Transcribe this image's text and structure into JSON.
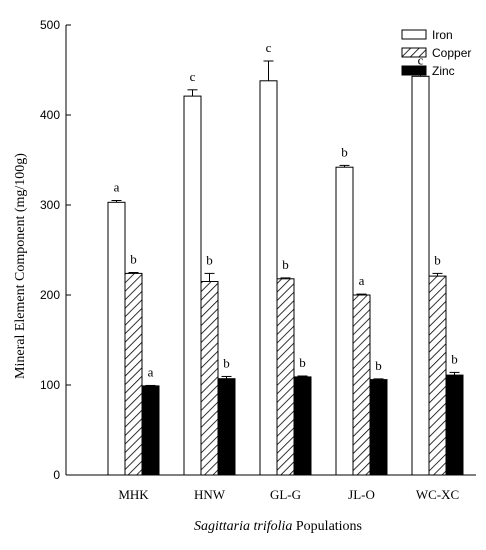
{
  "chart_data": {
    "type": "bar",
    "categories": [
      "MHK",
      "HNW",
      "GL-G",
      "JL-O",
      "WC-XC"
    ],
    "series": [
      {
        "name": "Iron",
        "values": [
          303,
          421,
          438,
          342,
          443
        ],
        "errors": [
          2,
          7,
          22,
          2,
          3
        ],
        "letters": [
          "a",
          "c",
          "c",
          "b",
          "c"
        ],
        "fill": "#ffffff"
      },
      {
        "name": "Copper",
        "values": [
          224,
          215,
          218,
          200,
          221
        ],
        "errors": [
          1,
          9,
          1,
          1,
          3
        ],
        "letters": [
          "b",
          "b",
          "b",
          "a",
          "b"
        ],
        "fill": "hatch"
      },
      {
        "name": "Zinc",
        "values": [
          99,
          107,
          109,
          106,
          111
        ],
        "errors": [
          0.5,
          2.5,
          1,
          0.8,
          3
        ],
        "letters": [
          "a",
          "b",
          "b",
          "b",
          "b"
        ],
        "fill": "#000000"
      }
    ],
    "ylabel": "Mineral Element Component (mg/100g)",
    "xlabel_italic": "Sagittaria trifolia",
    "xlabel_rest": " Populations",
    "ylim": [
      0,
      500
    ],
    "yticks": [
      0,
      100,
      200,
      300,
      400,
      500
    ],
    "grid": false,
    "legend_position": "top-right"
  }
}
